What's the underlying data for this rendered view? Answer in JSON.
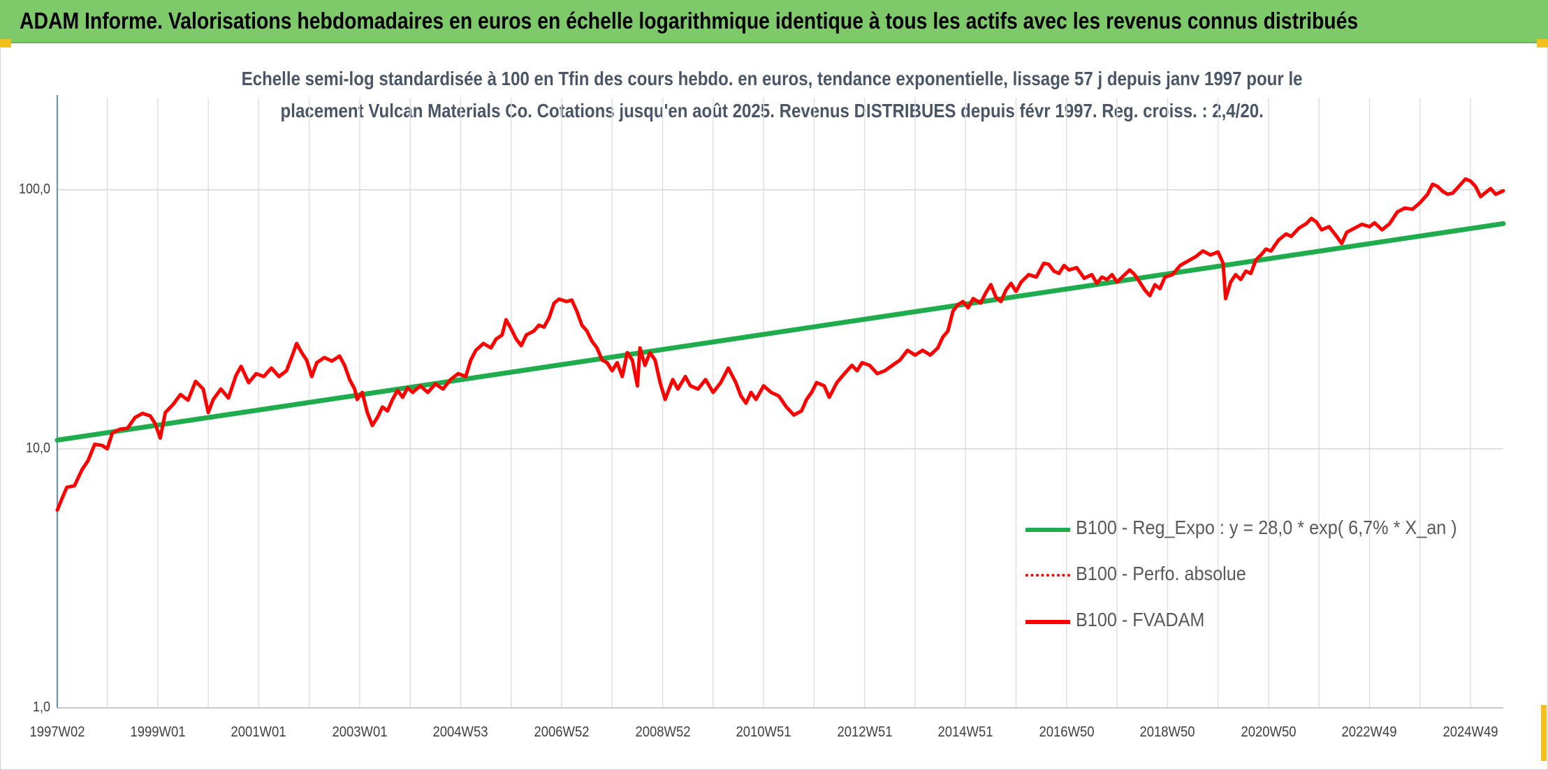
{
  "header": {
    "title": "ADAM Informe. Valorisations hebdomadaires en euros en échelle logarithmique identique à tous les actifs avec les revenus connus distribués"
  },
  "chart_data": {
    "type": "line",
    "subtitle_line1": "Echelle semi-log standardisée à 100 en Tfin des cours hebdo. en euros, tendance exponentielle, lissage 57 j depuis janv 1997 pour le",
    "subtitle_line2": "placement Vulcan Materials Co. Cotations jusqu'en août 2025. Revenus DISTRIBUES depuis févr 1997. Reg. croiss. : 2,4/20.",
    "y_scale": "log",
    "ylim": [
      1,
      200
    ],
    "y_ticks": [
      {
        "value": 1,
        "label": "1,0"
      },
      {
        "value": 10,
        "label": "10,0"
      },
      {
        "value": 100,
        "label": "100,0"
      }
    ],
    "x_range": [
      1997.01,
      2025.65
    ],
    "x_ticks": [
      {
        "x": 1997.01,
        "label": "1997W02"
      },
      {
        "x": 1999.0,
        "label": "1999W01"
      },
      {
        "x": 2001.0,
        "label": "2001W01"
      },
      {
        "x": 2003.0,
        "label": "2003W01"
      },
      {
        "x": 2005.0,
        "label": "2004W53"
      },
      {
        "x": 2007.0,
        "label": "2006W52"
      },
      {
        "x": 2009.0,
        "label": "2008W52"
      },
      {
        "x": 2011.0,
        "label": "2010W51"
      },
      {
        "x": 2013.0,
        "label": "2012W51"
      },
      {
        "x": 2015.0,
        "label": "2014W51"
      },
      {
        "x": 2017.0,
        "label": "2016W50"
      },
      {
        "x": 2019.0,
        "label": "2018W50"
      },
      {
        "x": 2021.0,
        "label": "2020W50"
      },
      {
        "x": 2023.0,
        "label": "2022W49"
      },
      {
        "x": 2025.0,
        "label": "2024W49"
      }
    ],
    "gridlines": true,
    "legend_position": "bottom-right",
    "series": [
      {
        "name": "B100 - Reg_Expo : y = 28,0 * exp( 6,7% *  X_an )",
        "color": "#1fac4c",
        "style": "solid",
        "points": [
          [
            1997.01,
            10.8
          ],
          [
            2025.65,
            74.0
          ]
        ]
      },
      {
        "name": "B100 - Perfo. absolue",
        "color": "#ff0000",
        "style": "dotted",
        "points": []
      },
      {
        "name": "B100 - FVADAM",
        "color": "#ff0000",
        "style": "solid",
        "points": [
          [
            1997.01,
            5.8
          ],
          [
            1997.1,
            6.4
          ],
          [
            1997.2,
            7.1
          ],
          [
            1997.35,
            7.2
          ],
          [
            1997.5,
            8.3
          ],
          [
            1997.62,
            9.0
          ],
          [
            1997.75,
            10.4
          ],
          [
            1997.9,
            10.3
          ],
          [
            1998.0,
            10.0
          ],
          [
            1998.1,
            11.5
          ],
          [
            1998.25,
            11.9
          ],
          [
            1998.4,
            12.0
          ],
          [
            1998.55,
            13.2
          ],
          [
            1998.7,
            13.7
          ],
          [
            1998.85,
            13.4
          ],
          [
            1998.95,
            12.5
          ],
          [
            1999.05,
            11.0
          ],
          [
            1999.15,
            13.8
          ],
          [
            1999.3,
            14.8
          ],
          [
            1999.45,
            16.2
          ],
          [
            1999.6,
            15.4
          ],
          [
            1999.75,
            18.2
          ],
          [
            1999.9,
            17.0
          ],
          [
            2000.0,
            13.8
          ],
          [
            2000.1,
            15.5
          ],
          [
            2000.25,
            17.0
          ],
          [
            2000.4,
            15.7
          ],
          [
            2000.55,
            19.2
          ],
          [
            2000.65,
            20.8
          ],
          [
            2000.8,
            18.0
          ],
          [
            2000.95,
            19.5
          ],
          [
            2001.1,
            19.0
          ],
          [
            2001.25,
            20.5
          ],
          [
            2001.4,
            19.0
          ],
          [
            2001.55,
            20.0
          ],
          [
            2001.65,
            22.5
          ],
          [
            2001.75,
            25.5
          ],
          [
            2001.85,
            23.5
          ],
          [
            2001.95,
            22.0
          ],
          [
            2002.05,
            19.0
          ],
          [
            2002.15,
            21.5
          ],
          [
            2002.3,
            22.5
          ],
          [
            2002.45,
            21.8
          ],
          [
            2002.6,
            22.8
          ],
          [
            2002.7,
            21.0
          ],
          [
            2002.8,
            18.5
          ],
          [
            2002.9,
            17.0
          ],
          [
            2002.95,
            15.5
          ],
          [
            2003.05,
            16.5
          ],
          [
            2003.15,
            13.8
          ],
          [
            2003.25,
            12.3
          ],
          [
            2003.35,
            13.2
          ],
          [
            2003.45,
            14.5
          ],
          [
            2003.55,
            14.0
          ],
          [
            2003.65,
            15.5
          ],
          [
            2003.75,
            16.8
          ],
          [
            2003.85,
            15.8
          ],
          [
            2003.95,
            17.2
          ],
          [
            2004.05,
            16.5
          ],
          [
            2004.2,
            17.5
          ],
          [
            2004.35,
            16.5
          ],
          [
            2004.5,
            17.8
          ],
          [
            2004.65,
            17.0
          ],
          [
            2004.8,
            18.5
          ],
          [
            2004.95,
            19.5
          ],
          [
            2005.1,
            19.0
          ],
          [
            2005.2,
            22.0
          ],
          [
            2005.3,
            24.0
          ],
          [
            2005.45,
            25.5
          ],
          [
            2005.6,
            24.5
          ],
          [
            2005.7,
            26.5
          ],
          [
            2005.82,
            27.5
          ],
          [
            2005.9,
            31.5
          ],
          [
            2006.0,
            29.0
          ],
          [
            2006.1,
            26.5
          ],
          [
            2006.2,
            25.0
          ],
          [
            2006.3,
            27.5
          ],
          [
            2006.45,
            28.5
          ],
          [
            2006.55,
            30.0
          ],
          [
            2006.65,
            29.5
          ],
          [
            2006.75,
            32.0
          ],
          [
            2006.85,
            36.5
          ],
          [
            2006.95,
            37.8
          ],
          [
            2007.1,
            37.0
          ],
          [
            2007.2,
            37.5
          ],
          [
            2007.3,
            34.0
          ],
          [
            2007.4,
            30.0
          ],
          [
            2007.5,
            28.5
          ],
          [
            2007.6,
            26.0
          ],
          [
            2007.7,
            24.5
          ],
          [
            2007.8,
            22.0
          ],
          [
            2007.9,
            21.5
          ],
          [
            2008.0,
            20.0
          ],
          [
            2008.1,
            21.5
          ],
          [
            2008.2,
            19.0
          ],
          [
            2008.3,
            23.5
          ],
          [
            2008.4,
            22.0
          ],
          [
            2008.5,
            17.5
          ],
          [
            2008.55,
            24.5
          ],
          [
            2008.65,
            21.0
          ],
          [
            2008.75,
            23.5
          ],
          [
            2008.85,
            22.0
          ],
          [
            2008.95,
            18.0
          ],
          [
            2009.05,
            15.5
          ],
          [
            2009.2,
            18.5
          ],
          [
            2009.3,
            17.0
          ],
          [
            2009.45,
            19.0
          ],
          [
            2009.55,
            17.5
          ],
          [
            2009.7,
            17.0
          ],
          [
            2009.85,
            18.5
          ],
          [
            2010.0,
            16.5
          ],
          [
            2010.15,
            18.0
          ],
          [
            2010.3,
            20.5
          ],
          [
            2010.45,
            18.0
          ],
          [
            2010.55,
            16.0
          ],
          [
            2010.65,
            15.0
          ],
          [
            2010.75,
            16.5
          ],
          [
            2010.85,
            15.5
          ],
          [
            2011.0,
            17.5
          ],
          [
            2011.15,
            16.5
          ],
          [
            2011.3,
            16.0
          ],
          [
            2011.45,
            14.5
          ],
          [
            2011.6,
            13.5
          ],
          [
            2011.75,
            14.0
          ],
          [
            2011.85,
            15.5
          ],
          [
            2011.95,
            16.5
          ],
          [
            2012.05,
            18.0
          ],
          [
            2012.2,
            17.5
          ],
          [
            2012.3,
            15.8
          ],
          [
            2012.45,
            18.0
          ],
          [
            2012.6,
            19.5
          ],
          [
            2012.75,
            21.0
          ],
          [
            2012.85,
            20.0
          ],
          [
            2012.95,
            21.5
          ],
          [
            2013.1,
            21.0
          ],
          [
            2013.25,
            19.5
          ],
          [
            2013.4,
            20.0
          ],
          [
            2013.55,
            21.0
          ],
          [
            2013.7,
            22.0
          ],
          [
            2013.85,
            24.0
          ],
          [
            2014.0,
            23.0
          ],
          [
            2014.15,
            24.0
          ],
          [
            2014.3,
            23.0
          ],
          [
            2014.45,
            24.5
          ],
          [
            2014.55,
            27.0
          ],
          [
            2014.65,
            28.5
          ],
          [
            2014.75,
            34.0
          ],
          [
            2014.85,
            36.0
          ],
          [
            2014.95,
            37.0
          ],
          [
            2015.05,
            35.0
          ],
          [
            2015.15,
            38.0
          ],
          [
            2015.3,
            36.5
          ],
          [
            2015.4,
            40.0
          ],
          [
            2015.5,
            43.0
          ],
          [
            2015.6,
            38.5
          ],
          [
            2015.7,
            37.0
          ],
          [
            2015.8,
            41.0
          ],
          [
            2015.9,
            43.5
          ],
          [
            2016.0,
            40.5
          ],
          [
            2016.1,
            44.0
          ],
          [
            2016.25,
            47.0
          ],
          [
            2016.4,
            46.0
          ],
          [
            2016.55,
            52.0
          ],
          [
            2016.65,
            51.5
          ],
          [
            2016.75,
            48.5
          ],
          [
            2016.85,
            47.5
          ],
          [
            2016.95,
            51.0
          ],
          [
            2017.05,
            49.0
          ],
          [
            2017.2,
            50.0
          ],
          [
            2017.35,
            45.5
          ],
          [
            2017.5,
            47.0
          ],
          [
            2017.6,
            43.5
          ],
          [
            2017.7,
            46.0
          ],
          [
            2017.8,
            45.0
          ],
          [
            2017.9,
            47.0
          ],
          [
            2018.0,
            44.0
          ],
          [
            2018.1,
            46.0
          ],
          [
            2018.25,
            49.0
          ],
          [
            2018.35,
            47.0
          ],
          [
            2018.45,
            44.0
          ],
          [
            2018.55,
            41.0
          ],
          [
            2018.65,
            39.0
          ],
          [
            2018.75,
            43.0
          ],
          [
            2018.85,
            41.5
          ],
          [
            2018.95,
            46.0
          ],
          [
            2019.1,
            47.0
          ],
          [
            2019.25,
            51.0
          ],
          [
            2019.4,
            53.0
          ],
          [
            2019.55,
            55.0
          ],
          [
            2019.7,
            58.0
          ],
          [
            2019.85,
            56.0
          ],
          [
            2020.0,
            57.5
          ],
          [
            2020.1,
            52.0
          ],
          [
            2020.15,
            38.0
          ],
          [
            2020.25,
            44.0
          ],
          [
            2020.35,
            47.0
          ],
          [
            2020.45,
            45.0
          ],
          [
            2020.55,
            48.5
          ],
          [
            2020.65,
            47.5
          ],
          [
            2020.75,
            53.5
          ],
          [
            2020.85,
            56.0
          ],
          [
            2020.95,
            59.0
          ],
          [
            2021.05,
            58.0
          ],
          [
            2021.2,
            64.0
          ],
          [
            2021.35,
            67.5
          ],
          [
            2021.45,
            66.0
          ],
          [
            2021.6,
            71.0
          ],
          [
            2021.75,
            74.0
          ],
          [
            2021.85,
            77.5
          ],
          [
            2021.95,
            75.0
          ],
          [
            2022.05,
            70.0
          ],
          [
            2022.2,
            72.0
          ],
          [
            2022.35,
            66.0
          ],
          [
            2022.45,
            62.0
          ],
          [
            2022.55,
            68.5
          ],
          [
            2022.7,
            71.0
          ],
          [
            2022.85,
            73.5
          ],
          [
            2023.0,
            72.0
          ],
          [
            2023.1,
            74.5
          ],
          [
            2023.25,
            70.0
          ],
          [
            2023.4,
            74.0
          ],
          [
            2023.55,
            82.0
          ],
          [
            2023.7,
            85.0
          ],
          [
            2023.85,
            84.0
          ],
          [
            2024.0,
            89.0
          ],
          [
            2024.15,
            96.0
          ],
          [
            2024.25,
            105.0
          ],
          [
            2024.35,
            103.0
          ],
          [
            2024.45,
            98.5
          ],
          [
            2024.55,
            96.0
          ],
          [
            2024.65,
            97.0
          ],
          [
            2024.75,
            102.0
          ],
          [
            2024.9,
            110.0
          ],
          [
            2025.0,
            108.0
          ],
          [
            2025.1,
            103.0
          ],
          [
            2025.2,
            94.0
          ],
          [
            2025.3,
            97.5
          ],
          [
            2025.4,
            101.0
          ],
          [
            2025.5,
            96.0
          ],
          [
            2025.65,
            99.0
          ]
        ]
      }
    ]
  }
}
